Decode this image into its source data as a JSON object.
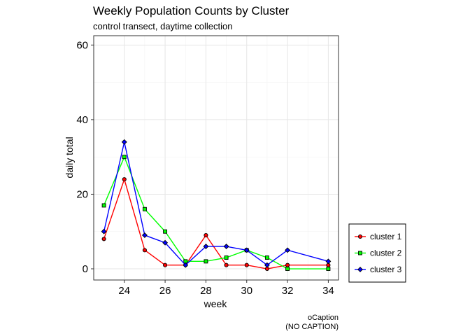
{
  "chart_data": {
    "type": "line",
    "title": "Weekly Population Counts by Cluster",
    "subtitle": "control transect, daytime collection",
    "xlabel": "week",
    "ylabel": "daily total",
    "xlim": [
      22.5,
      34.5
    ],
    "ylim": [
      -3,
      62.5
    ],
    "x_ticks": [
      24,
      26,
      28,
      30,
      32,
      34
    ],
    "y_ticks": [
      0,
      20,
      40,
      60
    ],
    "grid": true,
    "legend_position": "right",
    "x": [
      23,
      24,
      25,
      26,
      27,
      28,
      29,
      30,
      31,
      32,
      34
    ],
    "series": [
      {
        "name": "cluster 1",
        "color": "#ff0000",
        "marker": "circle",
        "values": [
          8,
          24,
          5,
          1,
          1,
          9,
          1,
          1,
          0,
          1,
          1
        ]
      },
      {
        "name": "cluster 2",
        "color": "#00ff00",
        "marker": "square",
        "values": [
          17,
          30,
          16,
          10,
          2,
          2,
          3,
          5,
          3,
          0,
          0
        ]
      },
      {
        "name": "cluster 3",
        "color": "#0000ff",
        "marker": "diamond",
        "values": [
          10,
          34,
          9,
          7,
          1,
          6,
          6,
          5,
          1,
          5,
          2
        ]
      }
    ],
    "caption": [
      "oCaption",
      "(NO CAPTION)"
    ]
  }
}
